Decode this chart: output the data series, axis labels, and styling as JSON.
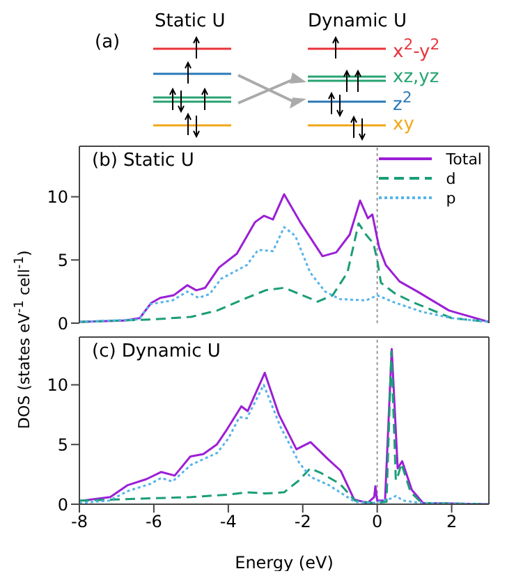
{
  "chart_data": [
    {
      "type": "other",
      "annotations": [
        "(a)",
        "Static U",
        "Dynamic U",
        "x$^{2}$-y$^{2}$",
        "xz,yz",
        "z$^{2}$",
        "xy"
      ]
    },
    {
      "type": "line",
      "title": "(b) Static U",
      "ylabel": "DOS (states eV$^{-1}$ cell$^{-1}$)",
      "xlim": [
        -8,
        3
      ],
      "xticks": [
        -8,
        -6,
        -4,
        -2,
        0,
        2
      ],
      "ylim": [
        0,
        14
      ],
      "yticks": [
        0,
        5,
        10
      ],
      "tick_labels": "y",
      "legend": "top right",
      "grid": false,
      "marker": "none",
      "ref_lines": [
        {
          "axis": "x",
          "value": 0,
          "color": "#999999",
          "line_style": "dotted"
        }
      ],
      "series": [
        {
          "name": "Total",
          "color": "#9b1fd6",
          "line_style": "solid",
          "x": [
            -8,
            -6.8,
            -6.38,
            -6.07,
            -5.83,
            -5.47,
            -5.1,
            -4.86,
            -4.62,
            -4.25,
            -3.77,
            -3.28,
            -3.04,
            -2.8,
            -2.5,
            -2.07,
            -1.47,
            -1.1,
            -0.74,
            -0.46,
            -0.25,
            -0.13,
            0.05,
            0.23,
            0.6,
            1.08,
            1.93,
            3
          ],
          "values": [
            0.1,
            0.2,
            0.4,
            1.6,
            2.0,
            2.2,
            3.0,
            2.6,
            2.8,
            4.4,
            5.5,
            8.0,
            8.5,
            8.2,
            10.2,
            8.0,
            5.3,
            5.6,
            7.0,
            9.7,
            8.3,
            8.6,
            6.0,
            4.6,
            3.3,
            2.5,
            1.0,
            0.1
          ]
        },
        {
          "name": "d",
          "color": "#1a9e77",
          "line_style": "dashed",
          "x": [
            -8,
            -6,
            -5,
            -4.3,
            -3.5,
            -3,
            -2.5,
            -2,
            -1.6,
            -1.2,
            -0.8,
            -0.5,
            -0.3,
            -0.1,
            0,
            0.1,
            0.5,
            1,
            2,
            3
          ],
          "values": [
            0.1,
            0.3,
            0.5,
            1.0,
            2.0,
            2.6,
            2.8,
            2.2,
            1.7,
            2.2,
            4.0,
            7.9,
            7.0,
            6.3,
            5.0,
            3.2,
            2.3,
            1.6,
            0.4,
            0.1
          ]
        },
        {
          "name": "p",
          "color": "#56b4e9",
          "line_style": "dotted",
          "x": [
            -8,
            -6.4,
            -6.1,
            -5.5,
            -5.1,
            -4.8,
            -4.5,
            -4.2,
            -3.5,
            -3.2,
            -2.8,
            -2.5,
            -2.2,
            -1.8,
            -1.4,
            -1,
            -0.3,
            0,
            0.5,
            1.2,
            2,
            3
          ],
          "values": [
            0.1,
            0.3,
            1.5,
            1.8,
            2.5,
            2.0,
            2.3,
            3.5,
            4.6,
            5.8,
            5.7,
            7.6,
            6.9,
            4.0,
            2.5,
            1.9,
            1.8,
            2.2,
            1.6,
            0.9,
            0.4,
            0.1
          ]
        }
      ]
    },
    {
      "type": "line",
      "title": "(c) Dynamic U",
      "xlabel": "Energy (eV)",
      "xlim": [
        -8,
        3
      ],
      "xticks": [
        -8,
        -6,
        -4,
        -2,
        0,
        2
      ],
      "ylim": [
        0,
        14
      ],
      "yticks": [
        0,
        5,
        10
      ],
      "grid": false,
      "marker": "none",
      "ref_lines": [
        {
          "axis": "x",
          "value": 0,
          "color": "#999999",
          "line_style": "dotted"
        }
      ],
      "series": [
        {
          "color": "#9b1fd6",
          "line_style": "solid",
          "x": [
            -7.9,
            -7.17,
            -6.7,
            -6.2,
            -5.8,
            -5.44,
            -5.02,
            -4.67,
            -4.31,
            -4.07,
            -3.65,
            -3.48,
            -3.02,
            -2.64,
            -2.17,
            -1.79,
            -1.33,
            -0.98,
            -0.62,
            -0.26,
            -0.08,
            -0.05,
            0,
            0.21,
            0.39,
            0.55,
            0.67,
            0.93,
            1.23,
            3
          ],
          "values": [
            0.3,
            0.6,
            1.6,
            2.1,
            2.7,
            2.4,
            4.0,
            4.2,
            5.0,
            6.1,
            8.2,
            7.8,
            11.0,
            7.5,
            4.6,
            5.2,
            3.8,
            2.8,
            0.4,
            0.1,
            0.6,
            1.5,
            0.3,
            0.3,
            13.0,
            3.0,
            3.6,
            1.2,
            0.1,
            0.0
          ]
        },
        {
          "color": "#1a9e77",
          "line_style": "dashed",
          "x": [
            -8,
            -6,
            -5,
            -4,
            -3.5,
            -3,
            -2.5,
            -2.1,
            -1.8,
            -1.5,
            -1.0,
            -0.6,
            -0.1,
            0.25,
            0.38,
            0.5,
            0.55,
            0.65,
            0.9,
            1.2,
            3
          ],
          "values": [
            0.3,
            0.5,
            0.6,
            0.8,
            1.0,
            0.9,
            1.0,
            2.0,
            3.0,
            2.6,
            1.7,
            0.3,
            0.1,
            0.2,
            12.8,
            2.0,
            2.3,
            3.4,
            1.0,
            0.1,
            0
          ]
        },
        {
          "color": "#56b4e9",
          "line_style": "dotted",
          "x": [
            -8,
            -7.2,
            -6.7,
            -6.1,
            -5.8,
            -5.5,
            -5,
            -4.3,
            -4.0,
            -3.7,
            -3.5,
            -3.05,
            -2.6,
            -2.1,
            -1.8,
            -1.3,
            -1.0,
            -0.6,
            -0.1,
            0.4,
            0.5,
            0.7,
            1.2,
            3
          ],
          "values": [
            0.1,
            0.3,
            1.1,
            1.7,
            2.2,
            1.9,
            3.3,
            4.3,
            5.5,
            7.3,
            7.2,
            10.0,
            6.5,
            3.5,
            2.3,
            1.6,
            1.0,
            0.2,
            0.1,
            0.5,
            0.7,
            0.3,
            0.1,
            0
          ]
        }
      ]
    }
  ]
}
